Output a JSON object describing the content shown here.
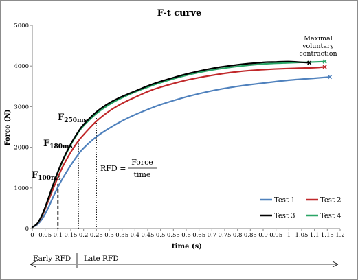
{
  "chart_data": {
    "type": "line",
    "title": "F-t curve",
    "xlabel": "time (s)",
    "ylabel": "Force (N)",
    "xlim": [
      0,
      1.2
    ],
    "ylim": [
      0,
      5000
    ],
    "x_ticks": [
      "0",
      "0.05",
      "0.1",
      "0.15",
      "0.2",
      "0.25",
      "0.3",
      "0.35",
      "0.4",
      "0.45",
      "0.5",
      "0.55",
      "0.6",
      "0.65",
      "0.7",
      "0.75",
      "0.8",
      "0.85",
      "0.9",
      "0.95",
      "1",
      "1.05",
      "1.1",
      "1.15",
      "1.2"
    ],
    "y_ticks": [
      "0",
      "1000",
      "2000",
      "3000",
      "4000",
      "5000"
    ],
    "grid": false,
    "legend_position": "bottom-right",
    "series": [
      {
        "name": "Test 1",
        "color": "#4f81bd",
        "x": [
          0,
          0.02,
          0.04,
          0.06,
          0.08,
          0.1,
          0.12,
          0.15,
          0.18,
          0.2,
          0.25,
          0.3,
          0.35,
          0.4,
          0.45,
          0.5,
          0.6,
          0.7,
          0.8,
          0.9,
          1.0,
          1.1,
          1.16
        ],
        "y": [
          30,
          100,
          250,
          480,
          760,
          1020,
          1250,
          1560,
          1830,
          1980,
          2260,
          2470,
          2650,
          2800,
          2930,
          3050,
          3240,
          3390,
          3500,
          3580,
          3650,
          3700,
          3730
        ]
      },
      {
        "name": "Test 2",
        "color": "#c0282a",
        "x": [
          0,
          0.02,
          0.04,
          0.06,
          0.08,
          0.1,
          0.12,
          0.15,
          0.18,
          0.2,
          0.25,
          0.3,
          0.35,
          0.4,
          0.45,
          0.5,
          0.6,
          0.7,
          0.8,
          0.9,
          1.0,
          1.1,
          1.14
        ],
        "y": [
          30,
          120,
          330,
          640,
          960,
          1260,
          1540,
          1880,
          2160,
          2310,
          2640,
          2890,
          3080,
          3230,
          3370,
          3480,
          3650,
          3770,
          3860,
          3910,
          3940,
          3960,
          3980
        ]
      },
      {
        "name": "Test 3",
        "color": "#000000",
        "x": [
          0,
          0.02,
          0.04,
          0.06,
          0.08,
          0.1,
          0.12,
          0.15,
          0.18,
          0.2,
          0.25,
          0.3,
          0.35,
          0.4,
          0.45,
          0.5,
          0.6,
          0.7,
          0.8,
          0.9,
          0.95,
          1.0,
          1.08
        ],
        "y": [
          30,
          130,
          360,
          700,
          1060,
          1400,
          1700,
          2080,
          2390,
          2560,
          2870,
          3090,
          3250,
          3380,
          3510,
          3620,
          3800,
          3940,
          4030,
          4090,
          4100,
          4110,
          4080
        ]
      },
      {
        "name": "Test 4",
        "color": "#2aa566",
        "x": [
          0,
          0.02,
          0.04,
          0.06,
          0.08,
          0.1,
          0.12,
          0.15,
          0.18,
          0.2,
          0.25,
          0.3,
          0.35,
          0.4,
          0.45,
          0.5,
          0.6,
          0.7,
          0.8,
          0.9,
          1.0,
          1.1,
          1.14
        ],
        "y": [
          30,
          125,
          350,
          690,
          1050,
          1380,
          1680,
          2060,
          2370,
          2530,
          2830,
          3050,
          3220,
          3360,
          3480,
          3590,
          3770,
          3900,
          3990,
          4050,
          4080,
          4100,
          4110
        ]
      }
    ],
    "annotations": {
      "f100": {
        "main": "F",
        "sub": "100ms",
        "x": 0.1,
        "y": 1100
      },
      "f180": {
        "main": "F",
        "sub": "180ms",
        "x": 0.18,
        "y": 2150
      },
      "f250": {
        "main": "F",
        "sub": "250ms",
        "x": 0.25,
        "y": 2720
      },
      "rfd_label": "RFD =",
      "rfd_numerator": "Force",
      "rfd_denominator": "time",
      "mvc_lines": [
        "Maximal",
        "voluntary",
        "contraction"
      ],
      "early_rfd": "Early RFD",
      "late_rfd": "Late RFD"
    }
  }
}
